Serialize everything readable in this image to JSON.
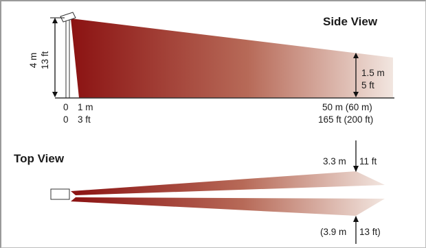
{
  "side_view": {
    "title": "Side View",
    "height_m": "4 m",
    "height_ft": "13 ft",
    "far_height_m": "1.5 m",
    "far_height_ft": "5 ft",
    "x_start_m": "0",
    "x_start_ft": "0",
    "x_near_m": "1 m",
    "x_near_ft": "3 ft",
    "x_far_m": "50 m (60 m)",
    "x_far_ft": "165 ft (200 ft)"
  },
  "top_view": {
    "title": "Top View",
    "width_m": "3.3 m",
    "width_ft": "11 ft",
    "width_alt_m": "(3.9 m",
    "width_alt_ft": "13 ft)"
  },
  "colors": {
    "beam_near": "#8b1212",
    "beam_far": "#f2e6e0"
  }
}
